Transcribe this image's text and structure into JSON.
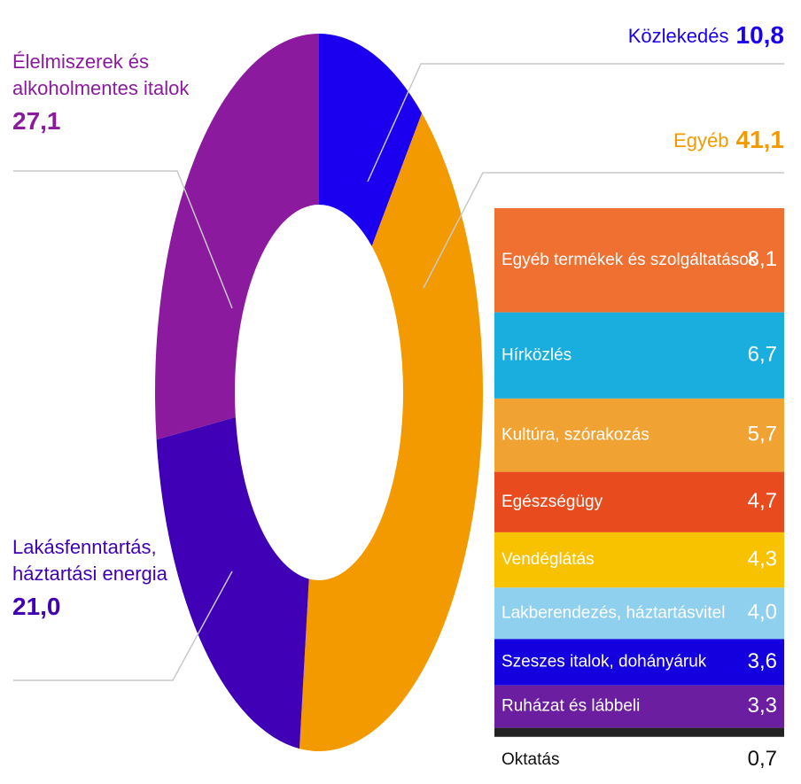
{
  "chart_data": [
    {
      "type": "donut",
      "categories": [
        "Közlekedés",
        "Egyéb",
        "Lakásfenntartás, háztartási energia",
        "Élelmiszerek és alkoholmentes italok"
      ],
      "values": [
        10.8,
        41.1,
        21.0,
        27.1
      ],
      "value_labels": [
        "10,8",
        "41,1",
        "21,0",
        "27,1"
      ],
      "colors": [
        "#1a00ee",
        "#f29a00",
        "#3f00b6",
        "#8b1a9f"
      ]
    },
    {
      "type": "stacked-column",
      "categories": [
        "Egyéb termékek és szolgáltatások",
        "Hírközlés",
        "Kultúra, szórakozás",
        "Egészségügy",
        "Vendéglátás",
        "Lakberendezés, háztartásvitel",
        "Szeszes italok, dohányáruk",
        "Ruházat és lábbeli",
        "Oktatás"
      ],
      "values": [
        8.1,
        6.7,
        5.7,
        4.7,
        4.3,
        4.0,
        3.6,
        3.3,
        0.7
      ],
      "value_labels": [
        "8,1",
        "6,7",
        "5,7",
        "4,7",
        "4,3",
        "4,0",
        "3,6",
        "3,3",
        "0,7"
      ],
      "colors": [
        "#f07032",
        "#1aaede",
        "#f0a232",
        "#e84c1e",
        "#f8c200",
        "#8ed0ee",
        "#1400de",
        "#6c1ea0",
        "#222222"
      ]
    }
  ]
}
